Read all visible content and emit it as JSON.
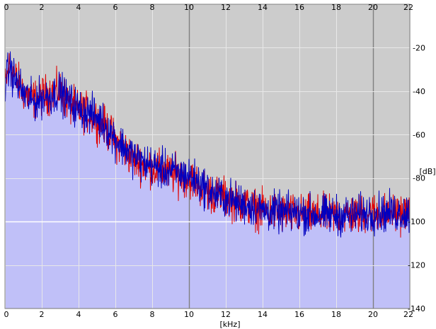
{
  "chart_data": {
    "type": "area",
    "xlabel": "[kHz]",
    "ylabel": "[dB]",
    "xlim": [
      0,
      22
    ],
    "ylim": [
      -140,
      0
    ],
    "x_ticks": [
      "0",
      "2",
      "4",
      "6",
      "8",
      "10",
      "12",
      "14",
      "16",
      "18",
      "20",
      "22"
    ],
    "y_ticks": [
      "-20",
      "-40",
      "-60",
      "-80",
      "-100",
      "-120",
      "-140"
    ],
    "grid": true,
    "colors": {
      "background": "#cccccc",
      "fill": "#c0c0f8",
      "channel_red": "#e00000",
      "channel_blue": "#0000c0",
      "grid": "#e8e8e8",
      "grid_major": "#808080"
    },
    "series": [
      {
        "color": "#e00000",
        "x": [
          0,
          0.25,
          0.5,
          1,
          1.5,
          2,
          2.5,
          3,
          3.5,
          4,
          4.5,
          5,
          5.5,
          6,
          6.5,
          7,
          7.5,
          8,
          8.5,
          9,
          9.5,
          10,
          10.5,
          11,
          11.5,
          12,
          12.5,
          13,
          13.5,
          14,
          15,
          16,
          17,
          18,
          19,
          20,
          21,
          22
        ],
        "y": [
          -38,
          -28,
          -33,
          -40,
          -44,
          -42,
          -41,
          -40,
          -46,
          -49,
          -50,
          -53,
          -57,
          -63,
          -67,
          -71,
          -74,
          -75,
          -77,
          -78,
          -79,
          -80,
          -83,
          -86,
          -88,
          -89,
          -91,
          -92,
          -94,
          -95,
          -96,
          -97,
          -97,
          -97,
          -97,
          -96,
          -96,
          -96
        ]
      },
      {
        "color": "#0000c0",
        "x": [
          0,
          0.25,
          0.5,
          1,
          1.5,
          2,
          2.5,
          3,
          3.5,
          4,
          4.5,
          5,
          5.5,
          6,
          6.5,
          7,
          7.5,
          8,
          8.5,
          9,
          9.5,
          10,
          10.5,
          11,
          11.5,
          12,
          12.5,
          13,
          13.5,
          14,
          15,
          16,
          17,
          18,
          19,
          20,
          21,
          22
        ],
        "y": [
          -37,
          -29,
          -34,
          -41,
          -45,
          -43,
          -42,
          -40,
          -45,
          -48,
          -50,
          -52,
          -56,
          -62,
          -66,
          -70,
          -73,
          -74,
          -76,
          -77,
          -78,
          -79,
          -82,
          -85,
          -88,
          -89,
          -91,
          -92,
          -93,
          -95,
          -96,
          -96,
          -97,
          -97,
          -97,
          -96,
          -96,
          -96
        ]
      }
    ]
  }
}
